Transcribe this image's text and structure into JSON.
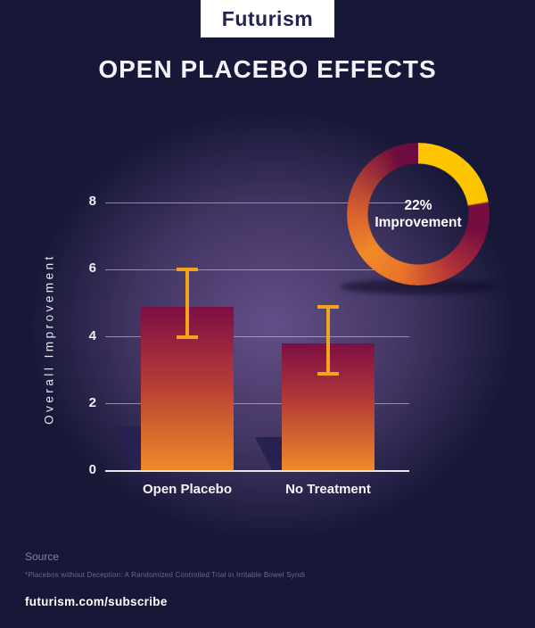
{
  "brand": {
    "logo": "Futurism",
    "subscribe": "futurism.com/subscribe"
  },
  "header": {
    "title": "OPEN PLACEBO EFFECTS"
  },
  "source": {
    "label": "Source",
    "citation": "*Placebos without Deception: A Randomized Controlled Trial in Irritable Bowel Syndi"
  },
  "chart_data": [
    {
      "type": "bar",
      "title": "OPEN PLACEBO EFFECTS",
      "categories": [
        "Open Placebo",
        "No Treatment"
      ],
      "values": [
        4.9,
        3.8
      ],
      "error_bars": [
        {
          "high": 6.0,
          "low": 4.0
        },
        {
          "high": 4.9,
          "low": 2.9
        }
      ],
      "xlabel": "",
      "ylabel": "Overall Improvement",
      "yticks": [
        8,
        6,
        4,
        2,
        0
      ],
      "ylim": [
        0,
        8
      ],
      "grid": true,
      "legend": "none",
      "bar_gradient_top": "#7c0e45",
      "bar_gradient_mid": "#b33a37",
      "bar_gradient_bottom": "#f18a28",
      "error_color": "#f2a41d"
    },
    {
      "type": "pie",
      "subtype": "donut",
      "label_line1": "22%",
      "label_line2": "Improvement",
      "slices": [
        {
          "name": "Improvement",
          "value": 22,
          "color": "#fdc500"
        },
        {
          "name": "Remainder",
          "value": 78,
          "color": "gradient maroon #760d41 to orange #f18a28"
        }
      ],
      "start_angle_deg": 0,
      "direction": "clockwise"
    }
  ],
  "colors": {
    "background_navy": "#171838",
    "glow_purple": "#5f4c82",
    "donut_yellow": "#fdc500",
    "donut_maroon": "#760d41",
    "donut_orange": "#f18a28",
    "error_gold": "#f2a41d",
    "gridline": "#dfd8ec",
    "text": "#ffffff"
  }
}
